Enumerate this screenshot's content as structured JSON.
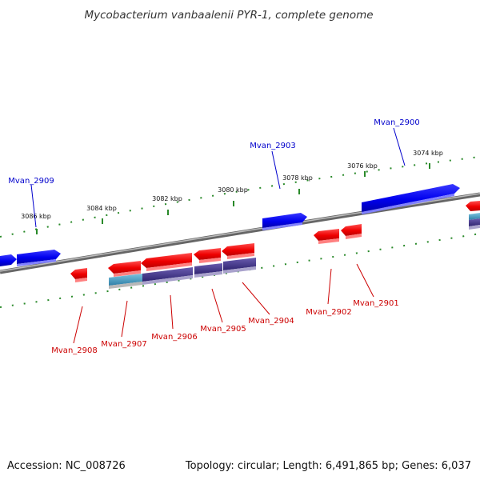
{
  "title": "Mycobacterium vanbaalenii PYR-1, complete genome",
  "footer": {
    "accession": "Accession: NC_008726",
    "stats": "Topology: circular; Length: 6,491,865 bp; Genes: 6,037"
  },
  "colors": {
    "forward": "#0000ff",
    "reverse": "#ff0000",
    "label_forward": "#0000cc",
    "label_reverse": "#cc0000",
    "backbone": "#888888",
    "ticks": "#2a8a2a",
    "purple_bar": "#4a3d8c",
    "cyan_bar": "#4fa6c8"
  },
  "scale_labels": [
    "3074 kbp",
    "3076 kbp",
    "3078 kbp",
    "3080 kbp",
    "3082 kbp",
    "3084 kbp",
    "3086 kbp"
  ],
  "forward_labels": [
    "Mvan_2900",
    "Mvan_2903",
    "Mvan_2909"
  ],
  "reverse_labels": [
    "Mvan_2901",
    "Mvan_2902",
    "Mvan_2904",
    "Mvan_2905",
    "Mvan_2906",
    "Mvan_2907",
    "Mvan_2908"
  ]
}
